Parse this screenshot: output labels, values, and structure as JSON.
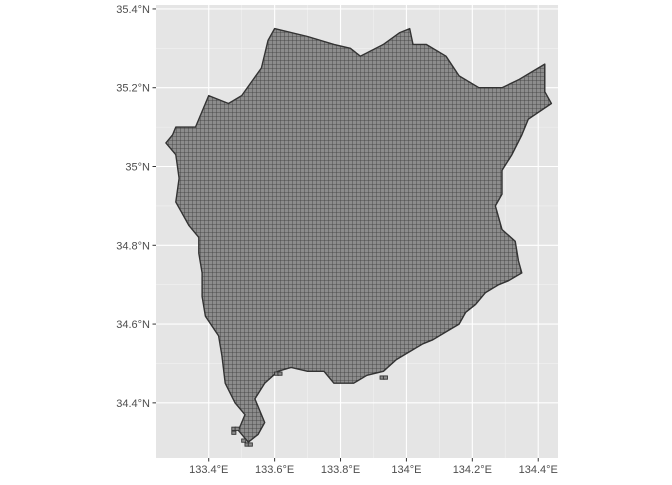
{
  "chart_data": {
    "type": "map",
    "title": "",
    "xlabel": "",
    "ylabel": "",
    "grid": true,
    "colors": {
      "panel_background": "#e5e5e5",
      "grid_major": "#ffffff",
      "grid_minor": "#f2f2f2",
      "cell_fill": "#8c8c8c",
      "cell_border": "#333333",
      "tick_text": "#4d4d4d",
      "tick_mark": "#333333"
    },
    "xlim": [
      133.24,
      134.46
    ],
    "ylim": [
      34.26,
      35.41
    ],
    "x_ticks": [
      {
        "value": 133.4,
        "label": "133.4°E"
      },
      {
        "value": 133.6,
        "label": "133.6°E"
      },
      {
        "value": 133.8,
        "label": "133.8°E"
      },
      {
        "value": 134.0,
        "label": "134°E"
      },
      {
        "value": 134.2,
        "label": "134.2°E"
      },
      {
        "value": 134.4,
        "label": "134.4°E"
      }
    ],
    "y_ticks": [
      {
        "value": 34.4,
        "label": "34.4°N"
      },
      {
        "value": 34.6,
        "label": "34.6°N"
      },
      {
        "value": 34.8,
        "label": "34.8°N"
      },
      {
        "value": 35.0,
        "label": "35°N"
      },
      {
        "value": 35.2,
        "label": "35.2°N"
      },
      {
        "value": 35.4,
        "label": "35.4°N"
      }
    ],
    "cell_size_deg": {
      "lon": 0.0125,
      "lat": 0.00833
    },
    "region_outline": [
      [
        133.3,
        35.1
      ],
      [
        133.36,
        35.1
      ],
      [
        133.4,
        35.18
      ],
      [
        133.46,
        35.16
      ],
      [
        133.5,
        35.18
      ],
      [
        133.56,
        35.25
      ],
      [
        133.58,
        35.32
      ],
      [
        133.6,
        35.35
      ],
      [
        133.7,
        35.33
      ],
      [
        133.78,
        35.31
      ],
      [
        133.83,
        35.3
      ],
      [
        133.86,
        35.28
      ],
      [
        133.93,
        35.31
      ],
      [
        133.98,
        35.34
      ],
      [
        134.01,
        35.35
      ],
      [
        134.02,
        35.31
      ],
      [
        134.06,
        35.31
      ],
      [
        134.12,
        35.28
      ],
      [
        134.16,
        35.23
      ],
      [
        134.22,
        35.2
      ],
      [
        134.29,
        35.2
      ],
      [
        134.34,
        35.22
      ],
      [
        134.38,
        35.24
      ],
      [
        134.42,
        35.26
      ],
      [
        134.42,
        35.19
      ],
      [
        134.44,
        35.16
      ],
      [
        134.37,
        35.12
      ],
      [
        134.35,
        35.08
      ],
      [
        134.32,
        35.03
      ],
      [
        134.29,
        34.99
      ],
      [
        134.29,
        34.93
      ],
      [
        134.27,
        34.9
      ],
      [
        134.29,
        34.84
      ],
      [
        134.33,
        34.81
      ],
      [
        134.34,
        34.76
      ],
      [
        134.35,
        34.73
      ],
      [
        134.31,
        34.71
      ],
      [
        134.28,
        34.7
      ],
      [
        134.24,
        34.68
      ],
      [
        134.21,
        34.65
      ],
      [
        134.18,
        34.63
      ],
      [
        134.16,
        34.6
      ],
      [
        134.12,
        34.58
      ],
      [
        134.08,
        34.56
      ],
      [
        134.05,
        34.55
      ],
      [
        134.01,
        34.53
      ],
      [
        133.97,
        34.51
      ],
      [
        133.93,
        34.48
      ],
      [
        133.88,
        34.47
      ],
      [
        133.84,
        34.45
      ],
      [
        133.78,
        34.45
      ],
      [
        133.75,
        34.48
      ],
      [
        133.7,
        34.48
      ],
      [
        133.65,
        34.49
      ],
      [
        133.61,
        34.48
      ],
      [
        133.57,
        34.45
      ],
      [
        133.54,
        34.41
      ],
      [
        133.57,
        34.35
      ],
      [
        133.55,
        34.32
      ],
      [
        133.52,
        34.3
      ],
      [
        133.49,
        34.33
      ],
      [
        133.51,
        34.37
      ],
      [
        133.48,
        34.4
      ],
      [
        133.45,
        34.45
      ],
      [
        133.44,
        34.52
      ],
      [
        133.43,
        34.57
      ],
      [
        133.39,
        34.62
      ],
      [
        133.38,
        34.67
      ],
      [
        133.38,
        34.73
      ],
      [
        133.37,
        34.78
      ],
      [
        133.37,
        34.82
      ],
      [
        133.34,
        34.85
      ],
      [
        133.32,
        34.88
      ],
      [
        133.3,
        34.91
      ],
      [
        133.31,
        34.97
      ],
      [
        133.3,
        35.03
      ],
      [
        133.27,
        35.06
      ],
      [
        133.29,
        35.08
      ]
    ]
  }
}
